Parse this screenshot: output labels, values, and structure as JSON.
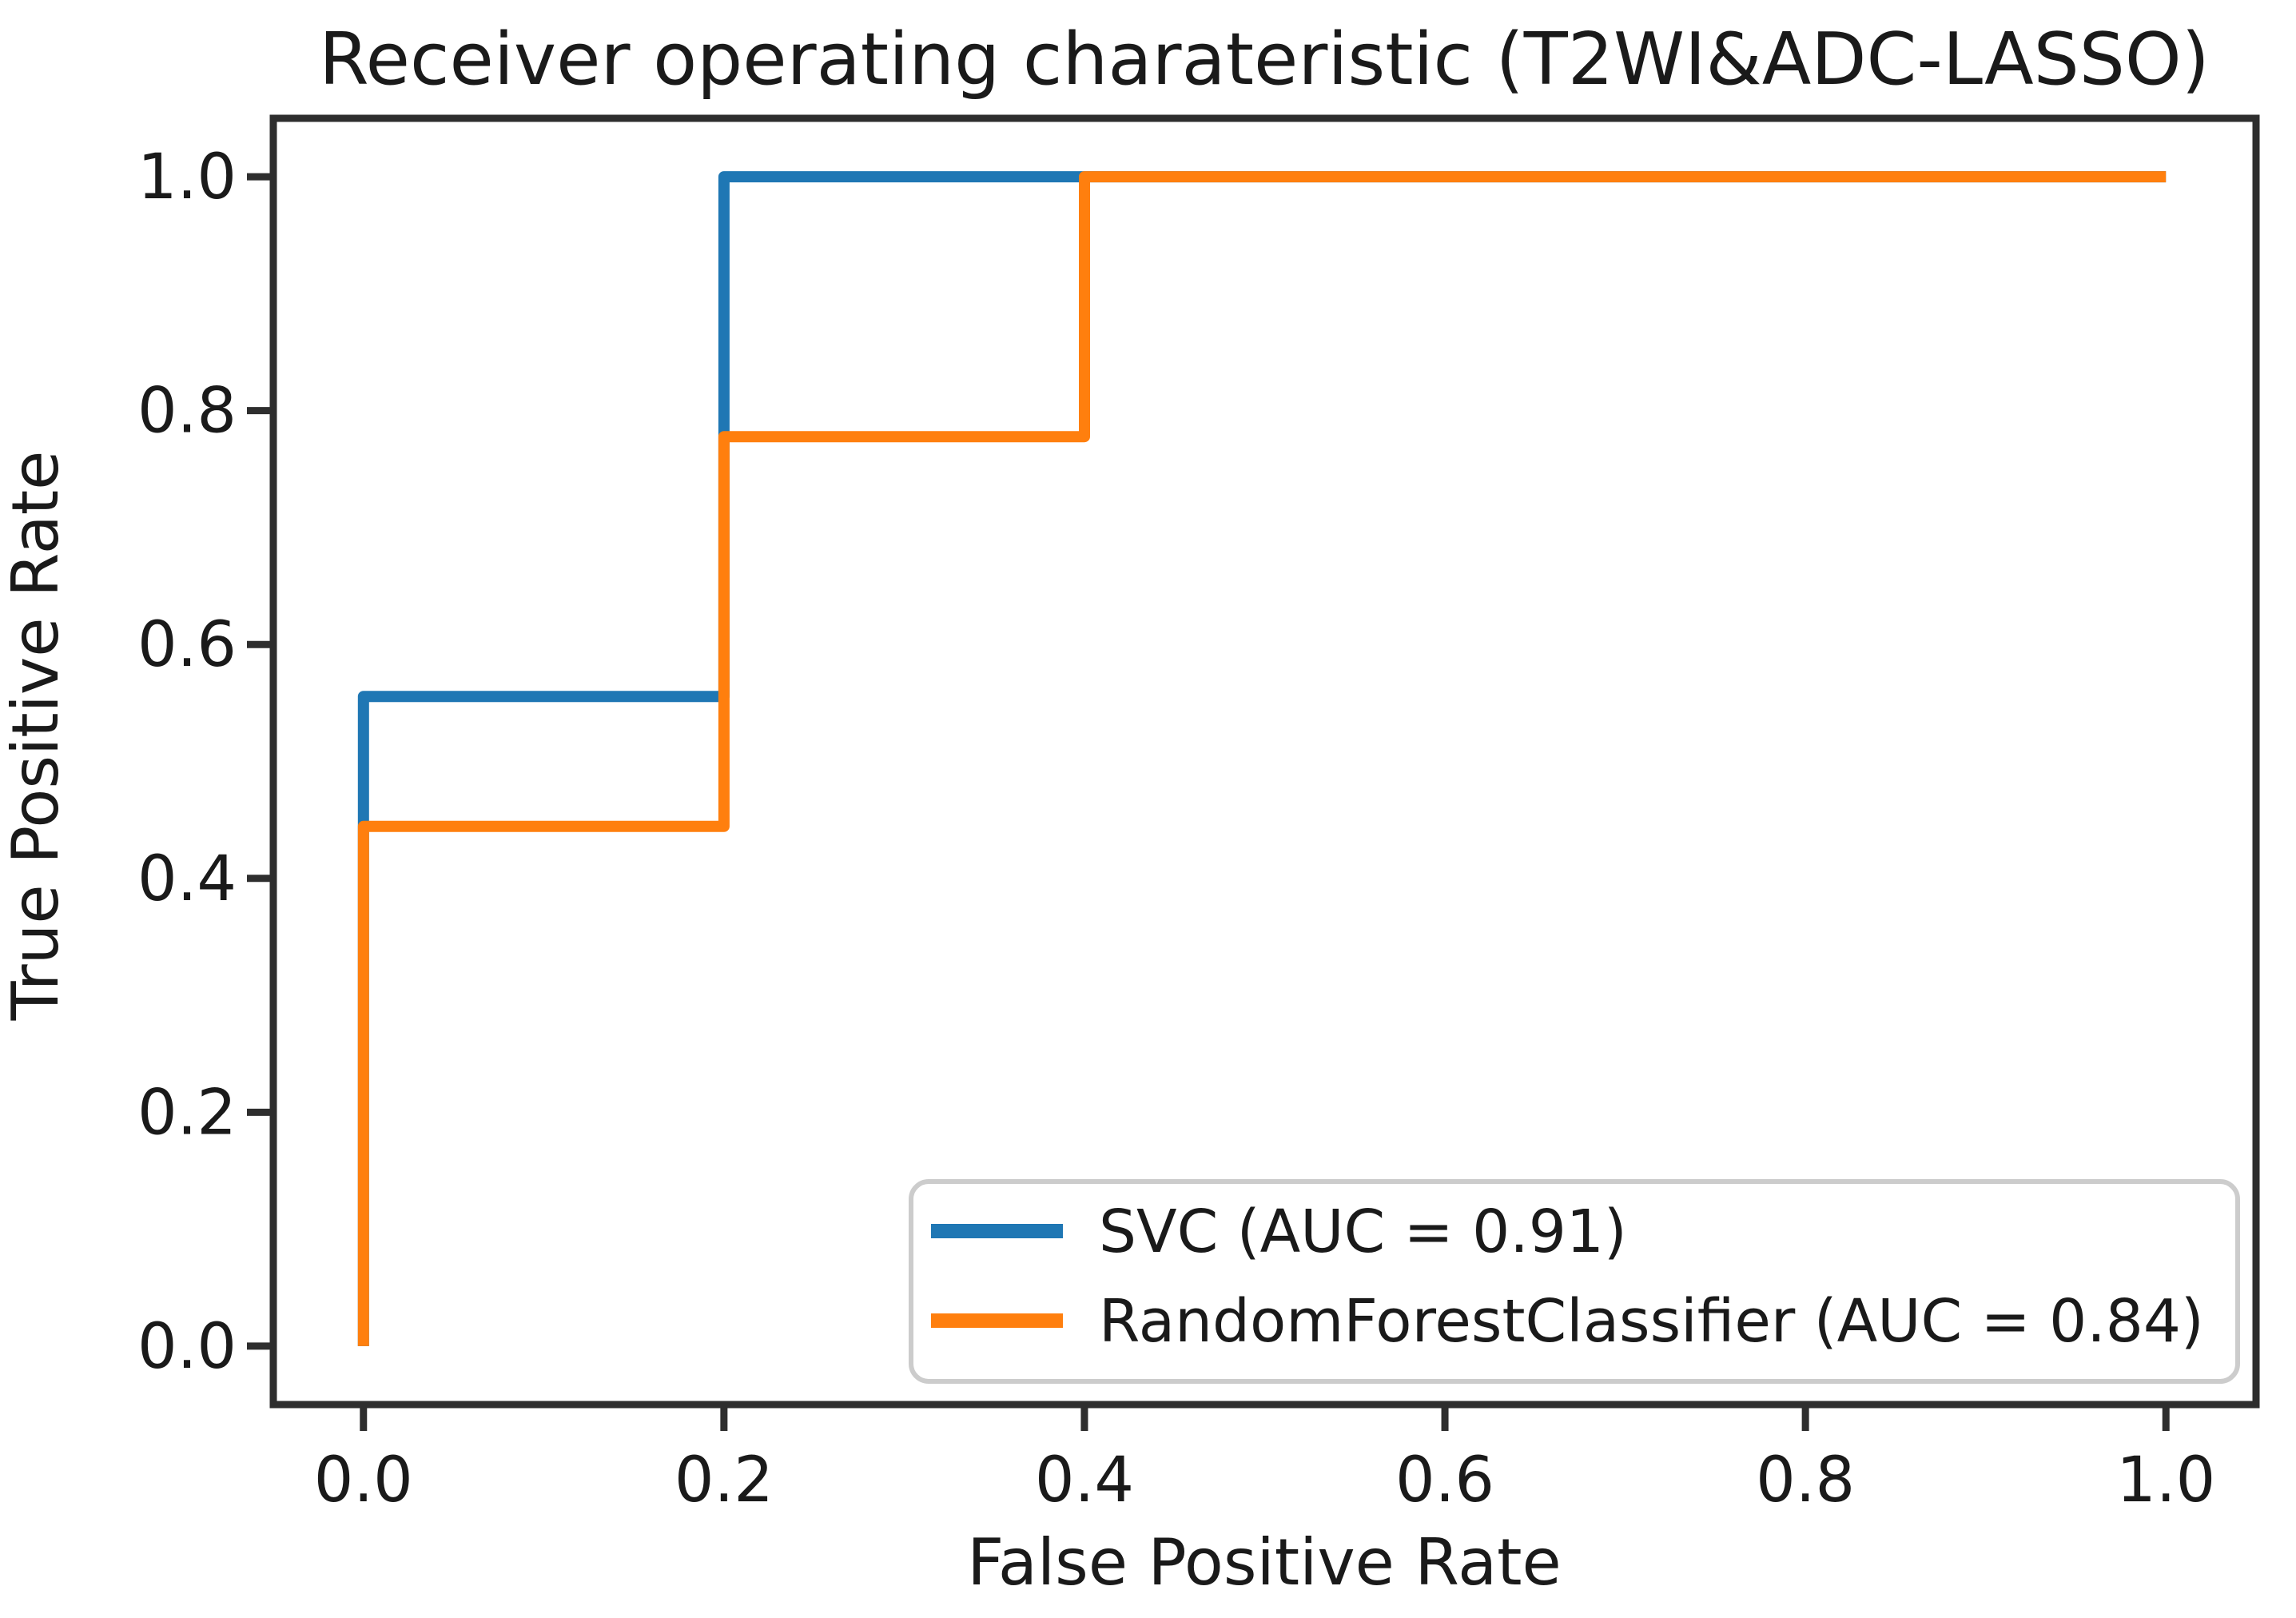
{
  "figure": {
    "background": "#ffffff",
    "axis_color": "#2e2e2e",
    "text_color": "#1a1a1a",
    "legend_border_color": "#cccccc",
    "legend_background": "#ffffff"
  },
  "chart_data": {
    "type": "line",
    "subtype": "roc-step-curve",
    "title": "Receiver operating charateristic (T2WI&ADC-LASSO)",
    "xlabel": "False Positive Rate",
    "ylabel": "True Positive Rate",
    "xlim": [
      -0.05,
      1.05
    ],
    "ylim": [
      -0.05,
      1.05
    ],
    "grid": false,
    "x_tick_values": [
      0.0,
      0.2,
      0.4,
      0.6,
      0.8,
      1.0
    ],
    "x_tick_labels": [
      "0.0",
      "0.2",
      "0.4",
      "0.6",
      "0.8",
      "1.0"
    ],
    "y_tick_values": [
      0.0,
      0.2,
      0.4,
      0.6,
      0.8,
      1.0
    ],
    "y_tick_labels": [
      "0.0",
      "0.2",
      "0.4",
      "0.6",
      "0.8",
      "1.0"
    ],
    "legend": {
      "position": "lower right",
      "entries": [
        "SVC (AUC = 0.91)",
        "RandomForestClassifier (AUC = 0.84)"
      ]
    },
    "series": [
      {
        "name": "SVC (AUC = 0.91)",
        "model": "SVC",
        "auc": 0.91,
        "color": "#1f77b4",
        "points": [
          [
            0.0,
            0.0
          ],
          [
            0.0,
            0.5556
          ],
          [
            0.2,
            0.5556
          ],
          [
            0.2,
            1.0
          ],
          [
            1.0,
            1.0
          ]
        ]
      },
      {
        "name": "RandomForestClassifier (AUC = 0.84)",
        "model": "RandomForestClassifier",
        "auc": 0.84,
        "color": "#ff7f0e",
        "points": [
          [
            0.0,
            0.0
          ],
          [
            0.0,
            0.4444
          ],
          [
            0.2,
            0.4444
          ],
          [
            0.2,
            0.7778
          ],
          [
            0.4,
            0.7778
          ],
          [
            0.4,
            1.0
          ],
          [
            1.0,
            1.0
          ]
        ]
      }
    ]
  }
}
